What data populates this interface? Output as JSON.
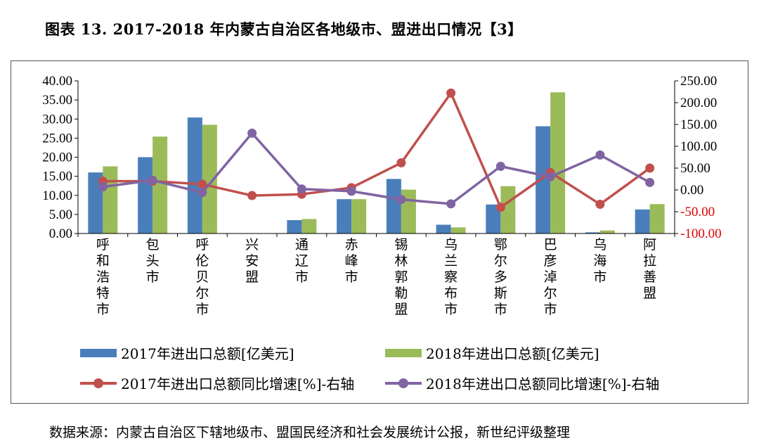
{
  "title": "图表 13. 2017-2018 年内蒙古自治区各地级市、盟进出口情况【3】",
  "source": "数据来源：内蒙古自治区下辖地级市、盟国民经济和社会发展统计公报，新世纪评级整理",
  "colors": {
    "bar2017": "#4a7ebb",
    "bar2018": "#9bbb59",
    "line2017": "#c0504d",
    "line2018": "#8064a2",
    "right_axis_negative": "#e00000"
  },
  "chart_data": {
    "type": "bar",
    "categories": [
      "呼和浩特市",
      "包头市",
      "呼伦贝尔市",
      "兴安盟",
      "通辽市",
      "赤峰市",
      "锡林郭勒盟",
      "乌兰察布市",
      "鄂尔多斯市",
      "巴彦淖尔市",
      "乌海市",
      "阿拉善盟"
    ],
    "series": [
      {
        "name": "2017年进出口总额[亿美元]",
        "type": "bar",
        "axis": "left",
        "values": [
          16.0,
          20.0,
          30.4,
          0,
          3.5,
          9.0,
          14.3,
          2.3,
          7.6,
          28.1,
          0.3,
          6.3
        ]
      },
      {
        "name": "2018年进出口总额[亿美元]",
        "type": "bar",
        "axis": "left",
        "values": [
          17.6,
          25.4,
          28.5,
          0,
          3.8,
          9.0,
          11.5,
          1.6,
          12.4,
          37.0,
          0.8,
          7.7
        ]
      },
      {
        "name": "2017年进出口总额同比增速[%]-右轴",
        "type": "line",
        "axis": "right",
        "values": [
          20,
          20,
          13,
          -13,
          -10,
          5,
          62,
          222,
          -40,
          40,
          -33,
          50
        ]
      },
      {
        "name": "2018年进出口总额同比增速[%]-右轴",
        "type": "line",
        "axis": "right",
        "values": [
          7,
          22,
          -6,
          130,
          2,
          -3,
          -22,
          -32,
          54,
          30,
          80,
          17
        ]
      }
    ],
    "left_axis": {
      "min": 0,
      "max": 40,
      "step": 5,
      "tick_labels": [
        "0.00",
        "5.00",
        "10.00",
        "15.00",
        "20.00",
        "25.00",
        "30.00",
        "35.00",
        "40.00"
      ]
    },
    "right_axis": {
      "min": -100,
      "max": 250,
      "step": 50,
      "tick_labels": [
        "-100.00",
        "-50.00",
        "0.00",
        "50.00",
        "100.00",
        "150.00",
        "200.00",
        "250.00"
      ]
    },
    "grid": false,
    "legend_position": "bottom"
  }
}
